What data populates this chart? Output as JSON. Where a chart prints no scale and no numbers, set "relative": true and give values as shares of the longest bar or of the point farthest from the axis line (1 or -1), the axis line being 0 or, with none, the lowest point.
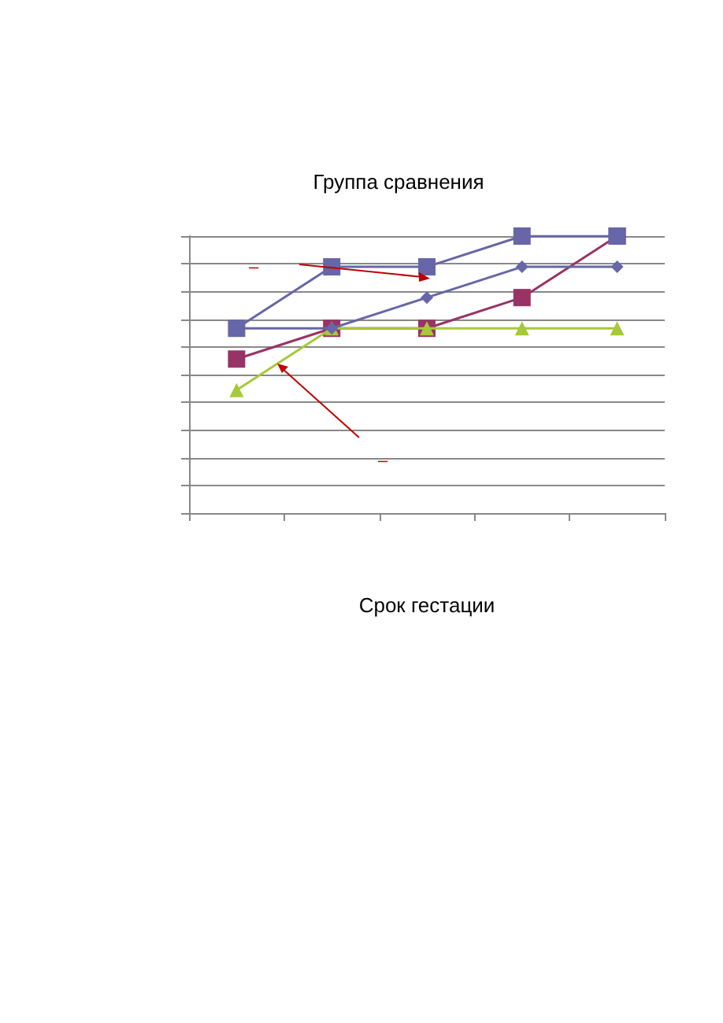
{
  "chart_data": {
    "type": "line",
    "title": "Группа сравнения",
    "xlabel": "Срок гестации",
    "relative": true,
    "categories": [
      null,
      null,
      null,
      null,
      null
    ],
    "series": [
      {
        "color": "#6666a8",
        "marker": "square",
        "values": [
          0.667,
          0.889,
          0.889,
          1,
          1
        ]
      },
      {
        "color": "#6666a8",
        "marker": "diamond",
        "values": [
          0.667,
          0.667,
          0.778,
          0.889,
          0.889
        ]
      },
      {
        "color": "#993366",
        "marker": "square",
        "values": [
          0.556,
          0.667,
          0.667,
          0.778,
          1
        ]
      },
      {
        "color": "#a6c93a",
        "marker": "triangle",
        "values": [
          0.444,
          0.667,
          0.667,
          0.667,
          0.667
        ]
      }
    ],
    "annotations": [
      "–",
      "–"
    ],
    "grid": "y",
    "line_style": "solid"
  }
}
